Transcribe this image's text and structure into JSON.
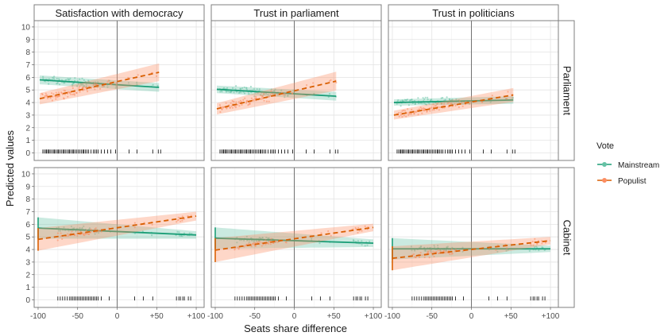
{
  "chart_data": {
    "type": "scatter",
    "facet_cols": [
      "Satisfaction with democracy",
      "Trust in parliament",
      "Trust in politicians"
    ],
    "facet_rows": [
      "Parliament",
      "Cabinet"
    ],
    "xlabel": "Seats share difference",
    "ylabel": "Predicted values",
    "xlim": [
      -105,
      110
    ],
    "ylim": [
      -0.6,
      10.5
    ],
    "x_ticks": [
      -100,
      -50,
      0,
      50,
      100
    ],
    "x_tick_labels": [
      "-100",
      "-50",
      "0",
      "+50",
      "+100"
    ],
    "y_ticks": [
      0,
      1,
      2,
      3,
      4,
      5,
      6,
      7,
      8,
      9,
      10
    ],
    "grid": true,
    "legend": {
      "title": "Vote",
      "position": "right",
      "entries": [
        {
          "name": "Mainstream",
          "color": "#1b9e77",
          "linetype": "solid"
        },
        {
          "name": "Populist",
          "color": "#d95f02",
          "linetype": "dashed"
        }
      ]
    },
    "series": [
      {
        "name": "Mainstream",
        "color": "#1b9e77",
        "band_color": "#66c2a5",
        "point_color": "#66c2a5"
      },
      {
        "name": "Populist",
        "color": "#d95f02",
        "band_color": "#fc8d62",
        "point_color": "#fc8d62"
      }
    ],
    "rows": {
      "Parliament": {
        "rug_x": [
          -94,
          -92,
          -90,
          -89,
          -87,
          -86,
          -84,
          -82,
          -80,
          -79,
          -77,
          -75,
          -74,
          -72,
          -70,
          -68,
          -67,
          -65,
          -63,
          -61,
          -60,
          -58,
          -56,
          -55,
          -53,
          -51,
          -49,
          -47,
          -45,
          -43,
          -42,
          -40,
          -38,
          -36,
          -33,
          -30,
          -28,
          -26,
          -24,
          -20,
          -16,
          -12,
          -8,
          -2,
          15,
          25,
          45,
          52,
          55
        ],
        "x_min": -98,
        "x_max": 53
      },
      "Cabinet": {
        "rug_x": [
          -75,
          -72,
          -69,
          -66,
          -63,
          -60,
          -58,
          -56,
          -54,
          -52,
          -50,
          -48,
          -46,
          -44,
          -42,
          -40,
          -38,
          -36,
          -34,
          -32,
          -30,
          -28,
          -26,
          -24,
          -20,
          -10,
          22,
          33,
          45,
          75,
          78,
          80,
          83,
          85,
          90,
          93
        ],
        "x_min": -100,
        "x_max": 100
      }
    },
    "panels": [
      {
        "row": "Parliament",
        "col": "Satisfaction with democracy",
        "Mainstream": {
          "fit": [
            5.8,
            5.2
          ],
          "band": [
            0.35,
            0.35
          ]
        },
        "Populist": {
          "fit": [
            4.3,
            6.4
          ],
          "band": [
            0.45,
            0.7
          ]
        }
      },
      {
        "row": "Parliament",
        "col": "Trust in parliament",
        "Mainstream": {
          "fit": [
            5.05,
            4.5
          ],
          "band": [
            0.3,
            0.35
          ]
        },
        "Populist": {
          "fit": [
            3.5,
            5.7
          ],
          "band": [
            0.45,
            0.75
          ]
        }
      },
      {
        "row": "Parliament",
        "col": "Trust in politicians",
        "Mainstream": {
          "fit": [
            4.0,
            4.2
          ],
          "band": [
            0.25,
            0.3
          ]
        },
        "Populist": {
          "fit": [
            3.0,
            4.6
          ],
          "band": [
            0.35,
            0.55
          ]
        }
      },
      {
        "row": "Cabinet",
        "col": "Satisfaction with democracy",
        "Mainstream": {
          "fit": [
            5.7,
            5.15
          ],
          "band": [
            0.85,
            0.3
          ]
        },
        "Populist": {
          "fit": [
            4.8,
            6.65
          ],
          "band": [
            0.9,
            0.35
          ]
        }
      },
      {
        "row": "Cabinet",
        "col": "Trust in parliament",
        "Mainstream": {
          "fit": [
            4.9,
            4.5
          ],
          "band": [
            0.85,
            0.3
          ]
        },
        "Populist": {
          "fit": [
            3.95,
            5.75
          ],
          "band": [
            0.95,
            0.3
          ]
        }
      },
      {
        "row": "Cabinet",
        "col": "Trust in politicians",
        "Mainstream": {
          "fit": [
            4.05,
            4.05
          ],
          "band": [
            0.85,
            0.25
          ]
        },
        "Populist": {
          "fit": [
            3.3,
            4.7
          ],
          "band": [
            0.95,
            0.3
          ]
        }
      }
    ]
  }
}
